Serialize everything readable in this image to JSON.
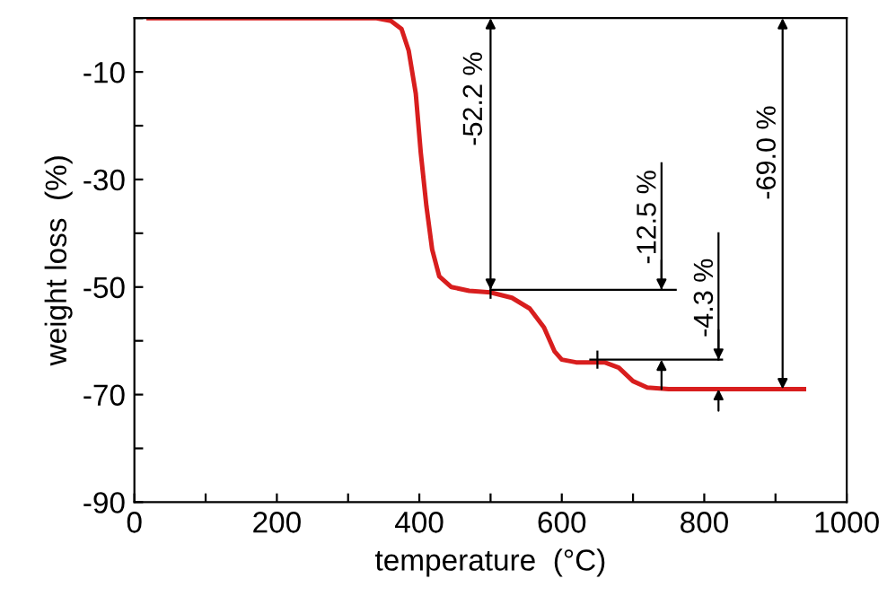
{
  "chart_data": {
    "type": "line",
    "xlabel": "temperature  (°C)",
    "ylabel": "weight loss  (%)",
    "x": [
      20,
      340,
      360,
      375,
      385,
      395,
      402,
      410,
      418,
      428,
      445,
      470,
      500,
      530,
      555,
      575,
      590,
      600,
      620,
      660,
      680,
      700,
      720,
      750,
      940
    ],
    "series": [
      {
        "color": "#d81e1e",
        "values": [
          0,
          0,
          -0.5,
          -2,
          -6,
          -14,
          -25,
          -35,
          -43,
          -48,
          -50,
          -50.7,
          -51,
          -52,
          -54,
          -57.5,
          -62,
          -63.5,
          -64,
          -64,
          -65,
          -67.5,
          -68.7,
          -69,
          -69
        ]
      }
    ],
    "xlim": [
      0,
      1000
    ],
    "ylim": [
      -90,
      0
    ],
    "xticks": [
      0,
      {
        "value": 100,
        "label": null
      },
      200,
      {
        "value": 300,
        "label": null
      },
      400,
      {
        "value": 500,
        "label": null
      },
      600,
      {
        "value": 700,
        "label": null
      },
      800,
      {
        "value": 900,
        "label": null
      },
      1000
    ],
    "yticks": [
      {
        "value": 0,
        "label": null
      },
      -10,
      {
        "value": -20,
        "label": null
      },
      -30,
      {
        "value": -40,
        "label": null
      },
      -50,
      {
        "value": -60,
        "label": null
      },
      -70,
      {
        "value": -80,
        "label": null
      },
      -90
    ],
    "annotations": [
      "-52.2 %",
      "-12.5 %",
      "-4.3 %",
      "-69.0 %"
    ],
    "grid": false,
    "legend": false,
    "marker": "none",
    "line_style": "solid"
  }
}
